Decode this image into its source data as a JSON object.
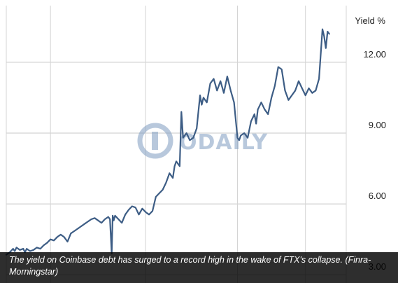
{
  "chart_data": {
    "type": "line",
    "title": "",
    "xlabel": "",
    "ylabel": "Yield %",
    "yticks": [
      "3.00",
      "6.00",
      "9.00",
      "12.00"
    ],
    "ylim": [
      2.65,
      14.4
    ],
    "xlim": [
      0,
      100
    ],
    "x_tick_labels": [
      "",
      "",
      ""
    ],
    "grid": true,
    "series": [
      {
        "name": "",
        "color": "#3d5d85",
        "x": [
          0,
          1,
          2,
          2.5,
          3,
          4,
          5,
          5.5,
          6,
          7,
          8,
          9,
          10,
          11,
          12,
          13,
          14,
          15,
          16,
          17,
          18,
          19,
          20,
          21,
          22,
          23,
          24,
          25,
          26,
          27,
          28,
          29,
          30,
          30.5,
          31,
          31.3,
          31.6,
          32,
          33,
          34,
          35,
          36,
          37,
          38,
          39,
          40,
          41,
          42,
          43,
          44,
          45,
          46,
          47,
          48,
          49,
          49.5,
          50,
          51,
          51.5,
          52,
          53,
          54,
          55,
          56,
          57,
          57.5,
          58,
          59,
          60,
          61,
          62,
          63,
          64,
          65,
          66,
          67,
          68,
          68.5,
          69,
          70,
          71,
          72,
          73,
          73.5,
          74,
          75,
          76,
          77,
          78,
          79,
          80,
          81,
          82,
          83,
          84,
          85,
          86,
          87,
          88,
          89,
          90,
          91,
          92,
          93,
          93.5,
          94,
          94.5,
          95
        ],
        "y": [
          3.85,
          3.95,
          4.1,
          4.0,
          4.15,
          4.05,
          4.1,
          3.95,
          4.1,
          4.0,
          4.05,
          4.15,
          4.1,
          4.25,
          4.35,
          4.5,
          4.45,
          4.6,
          4.7,
          4.6,
          4.4,
          4.75,
          4.85,
          4.95,
          5.05,
          5.15,
          5.25,
          5.35,
          5.4,
          5.3,
          5.2,
          5.35,
          5.45,
          5.35,
          3.9,
          5.5,
          5.3,
          5.5,
          5.35,
          5.2,
          5.55,
          5.75,
          5.9,
          5.85,
          5.55,
          5.8,
          5.65,
          5.55,
          5.7,
          6.3,
          6.45,
          6.6,
          6.9,
          7.3,
          7.1,
          7.6,
          7.8,
          7.6,
          9.9,
          8.8,
          9.0,
          8.7,
          8.8,
          9.2,
          10.6,
          10.2,
          10.5,
          10.3,
          11.1,
          11.3,
          10.8,
          11.2,
          10.7,
          11.4,
          10.8,
          10.3,
          8.8,
          8.7,
          8.9,
          9.0,
          8.8,
          9.5,
          9.8,
          9.4,
          10.0,
          10.3,
          10.0,
          9.8,
          10.5,
          11.0,
          11.8,
          11.7,
          10.8,
          10.4,
          10.6,
          10.8,
          11.2,
          10.9,
          10.6,
          10.9,
          10.7,
          10.8,
          11.3,
          13.4,
          13.1,
          12.6,
          13.3,
          13.2
        ]
      }
    ]
  },
  "watermark": {
    "text": "ODAILY",
    "color": "#7f9cc0"
  },
  "caption": "The yield on Coinbase debt has surged to a record high in the wake of FTX's collapse. (Finra-Morningstar)"
}
